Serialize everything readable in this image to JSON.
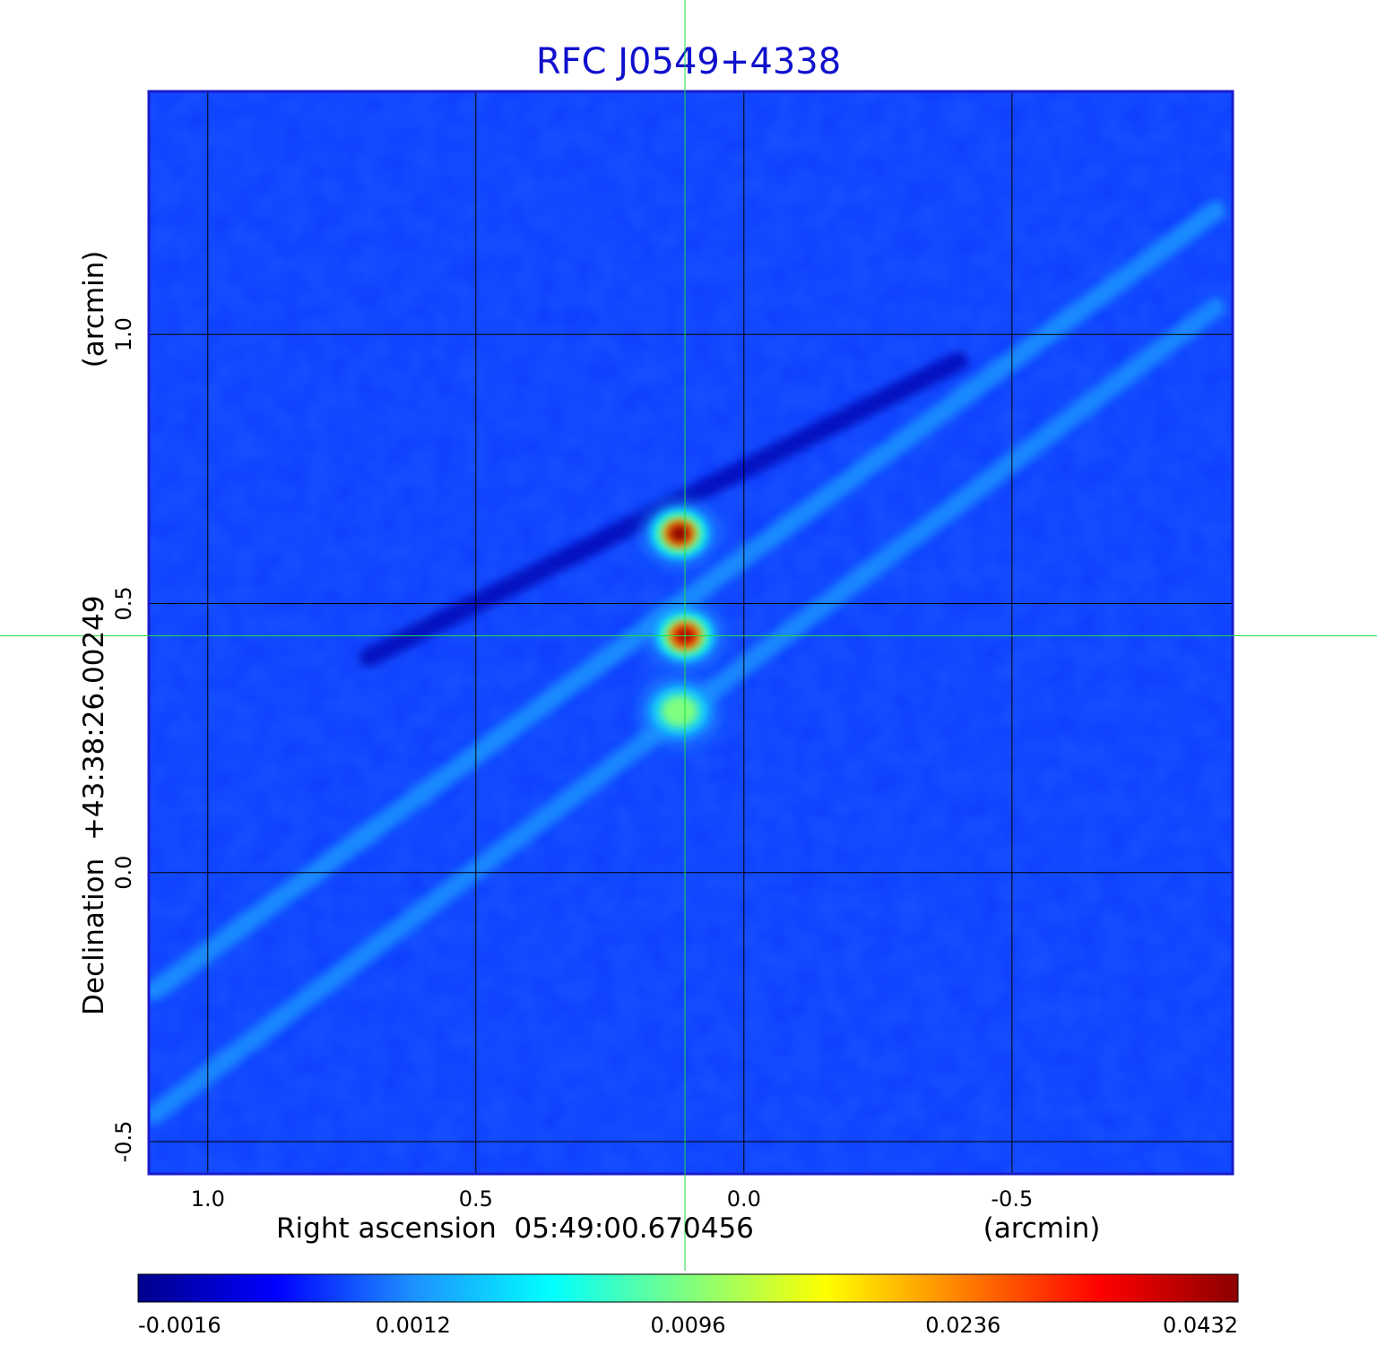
{
  "chart_data": {
    "type": "heatmap",
    "title": "RFC J0549+4338",
    "xlabel": "Right ascension  05:49:00.670456",
    "xunit": "(arcmin)",
    "ylabel": "Declination  +43:38:26.00249",
    "yunit": "(arcmin)",
    "x_axis_reversed": true,
    "xlim": [
      1.11,
      -0.91
    ],
    "ylim": [
      -0.56,
      1.45
    ],
    "x_ticks": [
      "1.0",
      "0.5",
      "0.0",
      "-0.5"
    ],
    "x_tick_values": [
      1.0,
      0.5,
      0.0,
      -0.5
    ],
    "y_ticks": [
      "-0.5",
      "0.0",
      "0.5",
      "1.0"
    ],
    "y_tick_values": [
      -0.5,
      0.0,
      0.5,
      1.0
    ],
    "grid": true,
    "crosshair": {
      "x": 0.11,
      "y": 0.44,
      "color": "#22dd44"
    },
    "colorbar": {
      "orientation": "horizontal",
      "placement": "bottom",
      "tick_labels": [
        "-0.0016",
        "0.0012",
        "0.0096",
        "0.0236",
        "0.0432"
      ],
      "tick_values": [
        -0.0016,
        0.0012,
        0.0096,
        0.0236,
        0.0432
      ],
      "colormap": [
        "#00008b",
        "#0000ff",
        "#1e90ff",
        "#00ffff",
        "#7fff7f",
        "#ffff00",
        "#ff7f00",
        "#ff0000",
        "#8b0000"
      ]
    },
    "background_value": 0.0004,
    "sources": [
      {
        "x": 0.12,
        "y": 0.63,
        "peak": 0.0432
      },
      {
        "x": 0.11,
        "y": 0.44,
        "peak": 0.04
      },
      {
        "x": 0.12,
        "y": 0.3,
        "peak": 0.0096
      }
    ],
    "features": [
      {
        "kind": "jet-streak",
        "from": [
          1.1,
          -0.22
        ],
        "to": [
          -0.88,
          1.23
        ],
        "value": 0.0018
      },
      {
        "kind": "jet-streak",
        "from": [
          1.1,
          -0.45
        ],
        "to": [
          -0.88,
          1.05
        ],
        "value": 0.0016
      },
      {
        "kind": "negative-streak",
        "from": [
          0.7,
          0.4
        ],
        "to": [
          -0.4,
          0.95
        ],
        "value": -0.0012
      }
    ],
    "title_color": "#1010cc",
    "frame_color": "#1a1acc"
  }
}
